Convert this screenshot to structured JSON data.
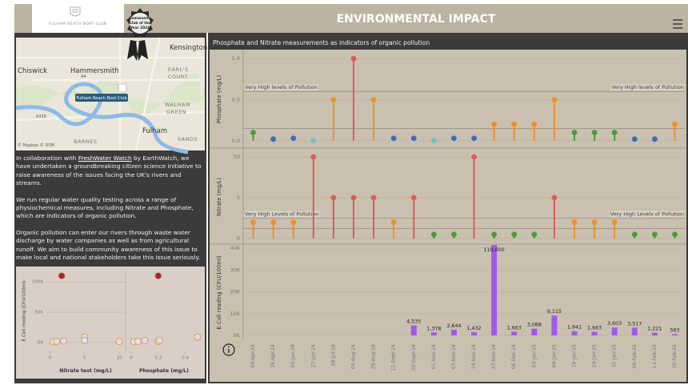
{
  "header": {
    "title": "ENVIRONMENTAL IMPACT",
    "logo_text": "FULHAM REACH BOAT CLUB",
    "badge_lines": [
      "Community",
      "Club of the",
      "Year 2024"
    ]
  },
  "map": {
    "labels": [
      "Chiswick",
      "Hammersmith",
      "Kensington",
      "EARL'S",
      "COURT",
      "WALHAM",
      "GREEN",
      "Fulham",
      "BARNES",
      "SANDS",
      "A4",
      "A316"
    ],
    "pin_label": "Fulham Reach Boat Club",
    "attribution": "© Mapbox © OSM"
  },
  "intro": {
    "paragraphs": [
      [
        "In collaboration with ",
        "FreshWater Watch",
        " by EarthWatch, we have undertaken a groundbreaking citizen science initiative to raise awareness of the issues facing the UK's rivers and streams."
      ],
      [
        "We run regular water quality testing across a range of physiochemical measures, including Nitrate and Phosphate, which are indicators of organic pollution."
      ],
      [
        "Organic pollution can enter our rivers through waste water discharge by water companies as well as from agricultural runoff. We aim to build community awareness of this issue to make local and national stakeholders take this issue seriously."
      ]
    ]
  },
  "panel_title": "Phosphate and Nitrate measurements as indicators of organic pollution",
  "chart_data": [
    {
      "type": "scatter",
      "x_label": "Nitrate test (mg/L)",
      "y_label": "E.Coli reading (CFU/100ml)",
      "xlim": [
        -0.5,
        10.8
      ],
      "xticks": [
        0,
        5,
        10
      ],
      "ylim": [
        -16000,
        120000
      ],
      "yticks": [
        {
          "value": 0,
          "label": "0K"
        },
        {
          "value": 50000,
          "label": "50K"
        },
        {
          "value": 100000,
          "label": "100K"
        }
      ],
      "x": [
        0.5,
        1,
        2,
        5,
        5,
        10,
        1.7
      ],
      "values": [
        1400,
        1900,
        2600,
        9100,
        3600,
        1700,
        110000
      ],
      "colors": [
        "#ead8f2",
        "#ead8f2",
        "#ead8f2",
        "#ead8f2",
        "#ead8f2",
        "#ead8f2",
        "#a3213f"
      ]
    },
    {
      "type": "scatter",
      "x_label": "Phosphate (mg/L)",
      "xlim": [
        -0.035,
        0.52
      ],
      "xticks": [
        0,
        0.2,
        0.4
      ],
      "ylim": [
        -16000,
        120000
      ],
      "x": [
        0.02,
        0.05,
        0.1,
        0.2,
        0.21,
        0.49,
        0.2
      ],
      "values": [
        1400,
        1900,
        3100,
        1700,
        3500,
        9100,
        110000
      ],
      "colors": [
        "#ead8f2",
        "#ead8f2",
        "#ead8f2",
        "#ead8f2",
        "#ead8f2",
        "#ead8f2",
        "#a3213f"
      ]
    },
    {
      "type": "lollipop",
      "y_label": "Phosphate (mg/L)",
      "ylim": [
        -0.06,
        1.07
      ],
      "yticks": [
        {
          "value": 0,
          "label": "0.0"
        },
        0.5,
        {
          "value": 1,
          "label": "1.0"
        }
      ],
      "ref_lines": [
        {
          "value": 0.6,
          "label": "Very High levels of Pollution"
        },
        {
          "value": 0.15
        }
      ],
      "values": [
        0.1,
        0.02,
        0.03,
        0.0,
        0.5,
        1.0,
        0.5,
        0.03,
        0.03,
        0.0,
        0.03,
        0.03,
        0.2,
        0.2,
        0.2,
        0.5,
        0.1,
        0.1,
        0.1,
        0.02,
        0.02,
        0.2
      ],
      "colors": [
        "#4f9a3f",
        "#3a6fb5",
        "#3a6fb5",
        "#6fc2c0",
        "#f0902a",
        "#e05a5a",
        "#f0902a",
        "#3a6fb5",
        "#3a6fb5",
        "#6fc2c0",
        "#3a6fb5",
        "#3a6fb5",
        "#f0902a",
        "#f0902a",
        "#f0902a",
        "#f0902a",
        "#4f9a3f",
        "#4f9a3f",
        "#4f9a3f",
        "#3a6fb5",
        "#3a6fb5",
        "#f0902a"
      ]
    },
    {
      "type": "lollipop",
      "y_label": "Nitrate (mg/L)",
      "ylim": [
        -0.6,
        10.8
      ],
      "yticks": [
        0,
        5,
        10
      ],
      "ref_lines": [
        {
          "value": 2.5,
          "label": "Very High Levels of Pollution"
        },
        {
          "value": 1.2
        }
      ],
      "values": [
        2,
        2,
        2,
        10,
        5,
        5,
        5,
        2,
        5,
        0.5,
        0.5,
        10,
        0.5,
        0.5,
        0.5,
        5,
        2,
        2,
        2,
        0.5,
        0.5,
        0.5
      ],
      "colors": [
        "#f0902a",
        "#f0902a",
        "#f0902a",
        "#e05a5a",
        "#e05a5a",
        "#e05a5a",
        "#e05a5a",
        "#f0902a",
        "#e05a5a",
        "#4f9a3f",
        "#4f9a3f",
        "#e05a5a",
        "#4f9a3f",
        "#4f9a3f",
        "#4f9a3f",
        "#e05a5a",
        "#f0902a",
        "#f0902a",
        "#f0902a",
        "#4f9a3f",
        "#4f9a3f",
        "#4f9a3f"
      ]
    },
    {
      "type": "bar",
      "y_label": "E.Coli reading (CFU/100ml)",
      "color": "#a259e6",
      "categories": [
        "04-Apr-24",
        "26-Apr-24",
        "05-Jun-24",
        "27-Jun-24",
        "08-Jul-24",
        "06-Aug-24",
        "28-Aug-24",
        "11-Sept-24",
        "20-Sept-24",
        "01-Nov-24",
        "07-Nov-24",
        "14-Nov-24",
        "27-Nov-24",
        "06-Dec-24",
        "03-Jan-25",
        "08-Jan-25",
        "16-Jan-25",
        "24-Jan-25",
        "31-Jan-25",
        "06-Feb-25",
        "13-Feb-25",
        "20-Feb-25"
      ],
      "ylim": [
        -2200,
        41500
      ],
      "yticks": [
        {
          "value": 0,
          "label": "0K"
        },
        {
          "value": 10000,
          "label": "10K"
        },
        {
          "value": 20000,
          "label": "20K"
        },
        {
          "value": 30000,
          "label": "30K"
        },
        {
          "value": 40000,
          "label": "40K"
        }
      ],
      "values": [
        null,
        null,
        null,
        null,
        null,
        null,
        null,
        null,
        4535,
        1378,
        2644,
        1432,
        110000,
        1663,
        3088,
        9115,
        1941,
        1663,
        3603,
        3517,
        1221,
        563
      ],
      "value_labels": [
        null,
        null,
        null,
        null,
        null,
        null,
        null,
        null,
        "4,535",
        "1,378",
        "2,644",
        "1,432",
        "110,000",
        "1,663",
        "3,088",
        "9,115",
        "1,941",
        "1,663",
        "3,603",
        "3,517",
        "1,221",
        "563"
      ]
    }
  ]
}
